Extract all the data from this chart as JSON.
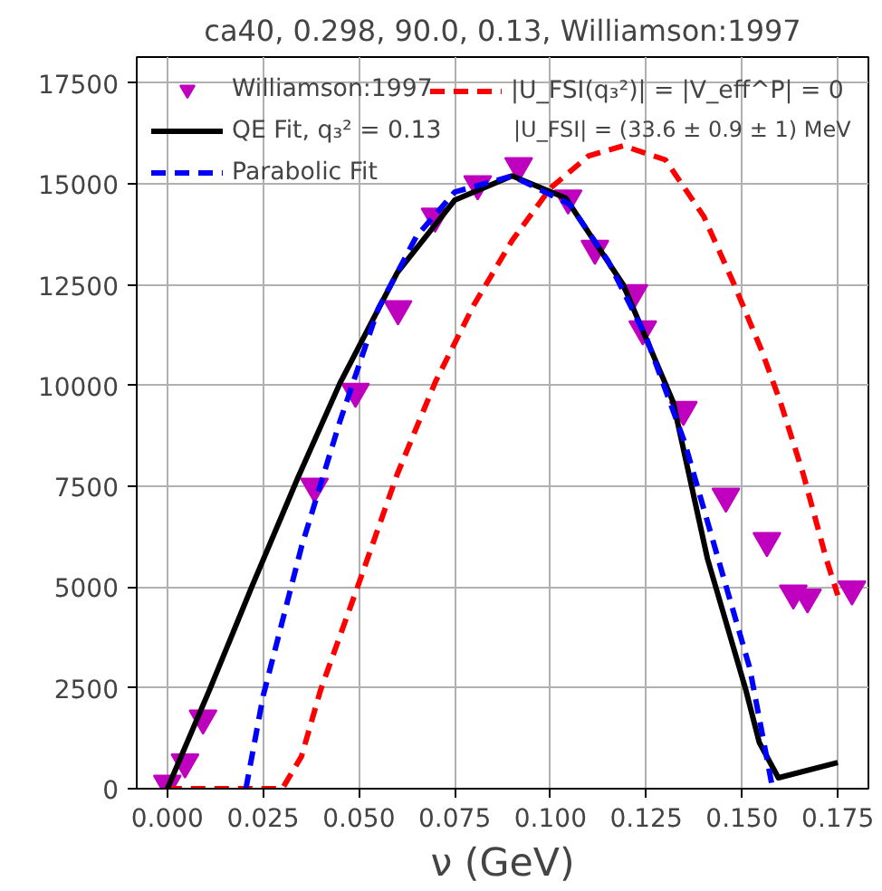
{
  "chart_data": {
    "type": "line",
    "title": "ca40, 0.298, 90.0, 0.13, Williamson:1997",
    "xlabel": "ν (GeV)",
    "xlim": [
      -0.008,
      0.183
    ],
    "ylim": [
      0,
      18150
    ],
    "xticks": [
      {
        "value": 0,
        "label": "0.000"
      },
      0.025,
      {
        "value": 0.05,
        "label": "0.050"
      },
      0.075,
      {
        "value": 0.1,
        "label": "0.100"
      },
      0.125,
      {
        "value": 0.15,
        "label": "0.150"
      },
      0.175
    ],
    "yticks": [
      0,
      2500,
      5000,
      7500,
      10000,
      12500,
      15000,
      17500
    ],
    "grid": true,
    "legend": "top left",
    "annotations": [
      "|U_FSI| = (33.6 ± 0.9 ± 1) MeV"
    ],
    "series": [
      {
        "name": "Williamson:1997",
        "type": "scatter",
        "marker": "triangle",
        "color": "#bf00bf",
        "x": [
          0,
          0.0046,
          0.0093,
          0.0384,
          0.0491,
          0.0602,
          0.0699,
          0.081,
          0.0917,
          0.1046,
          0.1116,
          0.1218,
          0.1241,
          0.1347,
          0.1458,
          0.1565,
          0.1634,
          0.1671,
          0.1787
        ],
        "values": [
          130,
          660,
          1750,
          7500,
          9850,
          11900,
          14200,
          15000,
          15450,
          14650,
          13400,
          12300,
          11400,
          9400,
          7250,
          6150,
          4850,
          4750,
          4950
        ]
      },
      {
        "name": "|U_FSI(q₃²)| = |V_eff^P| = 0",
        "line_style": "dashed",
        "color": "#ff0000",
        "x": [
          0,
          0.03,
          0.035,
          0.04,
          0.05,
          0.06,
          0.07,
          0.08,
          0.09,
          0.1,
          0.11,
          0.119,
          0.13,
          0.14,
          0.148,
          0.155,
          0.16,
          0.166,
          0.172,
          0.175
        ],
        "values": [
          0,
          0,
          800,
          2450,
          5100,
          7800,
          10100,
          12000,
          13600,
          14900,
          15700,
          15950,
          15600,
          14200,
          12500,
          10900,
          9600,
          7800,
          5700,
          4800
        ]
      },
      {
        "name": "QE Fit, q₃² = 0.13",
        "line_style": "solid",
        "color": "#000000",
        "x": [
          0,
          0.011,
          0.022,
          0.034,
          0.045,
          0.06,
          0.075,
          0.09,
          0.104,
          0.119,
          0.132,
          0.141,
          0.151,
          0.1545,
          0.1595,
          0.175
        ],
        "values": [
          0,
          2450,
          5000,
          7700,
          10050,
          12800,
          14600,
          15200,
          14650,
          12500,
          9600,
          5700,
          2450,
          1150,
          270,
          650
        ]
      },
      {
        "name": "Parabolic Fit",
        "line_style": "dashed",
        "color": "#0000ff",
        "x": [
          0.0205,
          0.025,
          0.035,
          0.045,
          0.055,
          0.065,
          0.075,
          0.09,
          0.105,
          0.115,
          0.125,
          0.135,
          0.145,
          0.152,
          0.158
        ],
        "values": [
          0,
          2300,
          6000,
          9100,
          11900,
          13700,
          14800,
          15200,
          14500,
          13100,
          11200,
          8600,
          5300,
          3000,
          0
        ]
      }
    ]
  }
}
